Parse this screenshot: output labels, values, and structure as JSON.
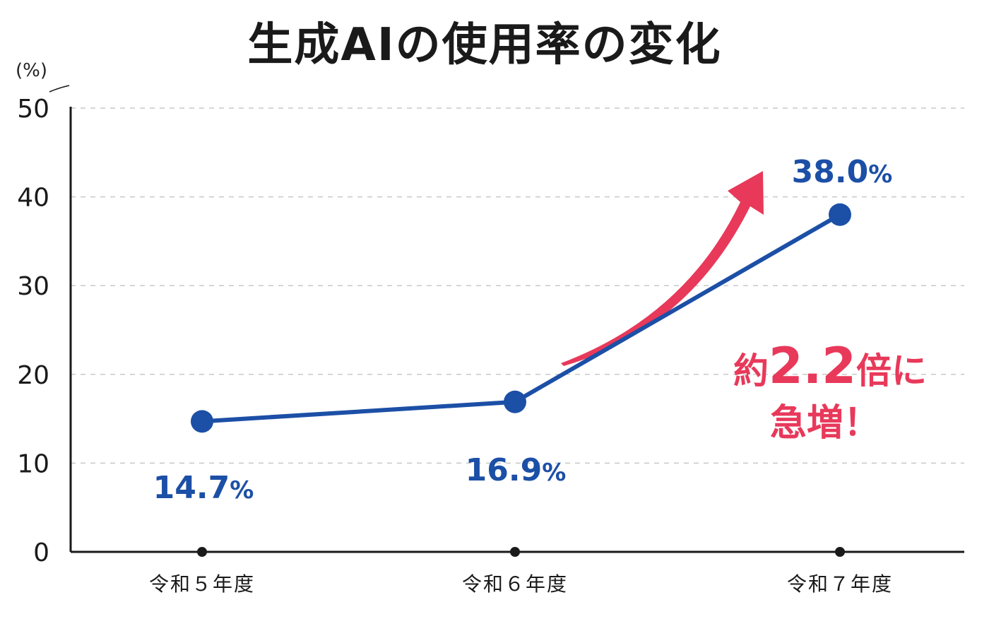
{
  "chart_data": {
    "type": "line",
    "title": "生成AIの使用率の変化",
    "yunit": "(%)",
    "categories": [
      "令和５年度",
      "令和６年度",
      "令和７年度"
    ],
    "series": [
      {
        "values": [
          14.7,
          16.9,
          38.0
        ],
        "labels": [
          "14.7",
          "16.9",
          "38.0"
        ]
      }
    ],
    "label_suffix": "%",
    "ylim": [
      0,
      50
    ],
    "yticks": [
      0,
      10,
      20,
      30,
      40,
      50
    ],
    "grid": true,
    "annotation": {
      "prefix": "約",
      "number": "2.2",
      "suffix": "倍に",
      "line2": "急増！"
    },
    "colors": {
      "line": "#1c4fa6",
      "accent": "#e8395a",
      "axis": "#1a1a1a",
      "grid": "#c8c8c8"
    }
  }
}
